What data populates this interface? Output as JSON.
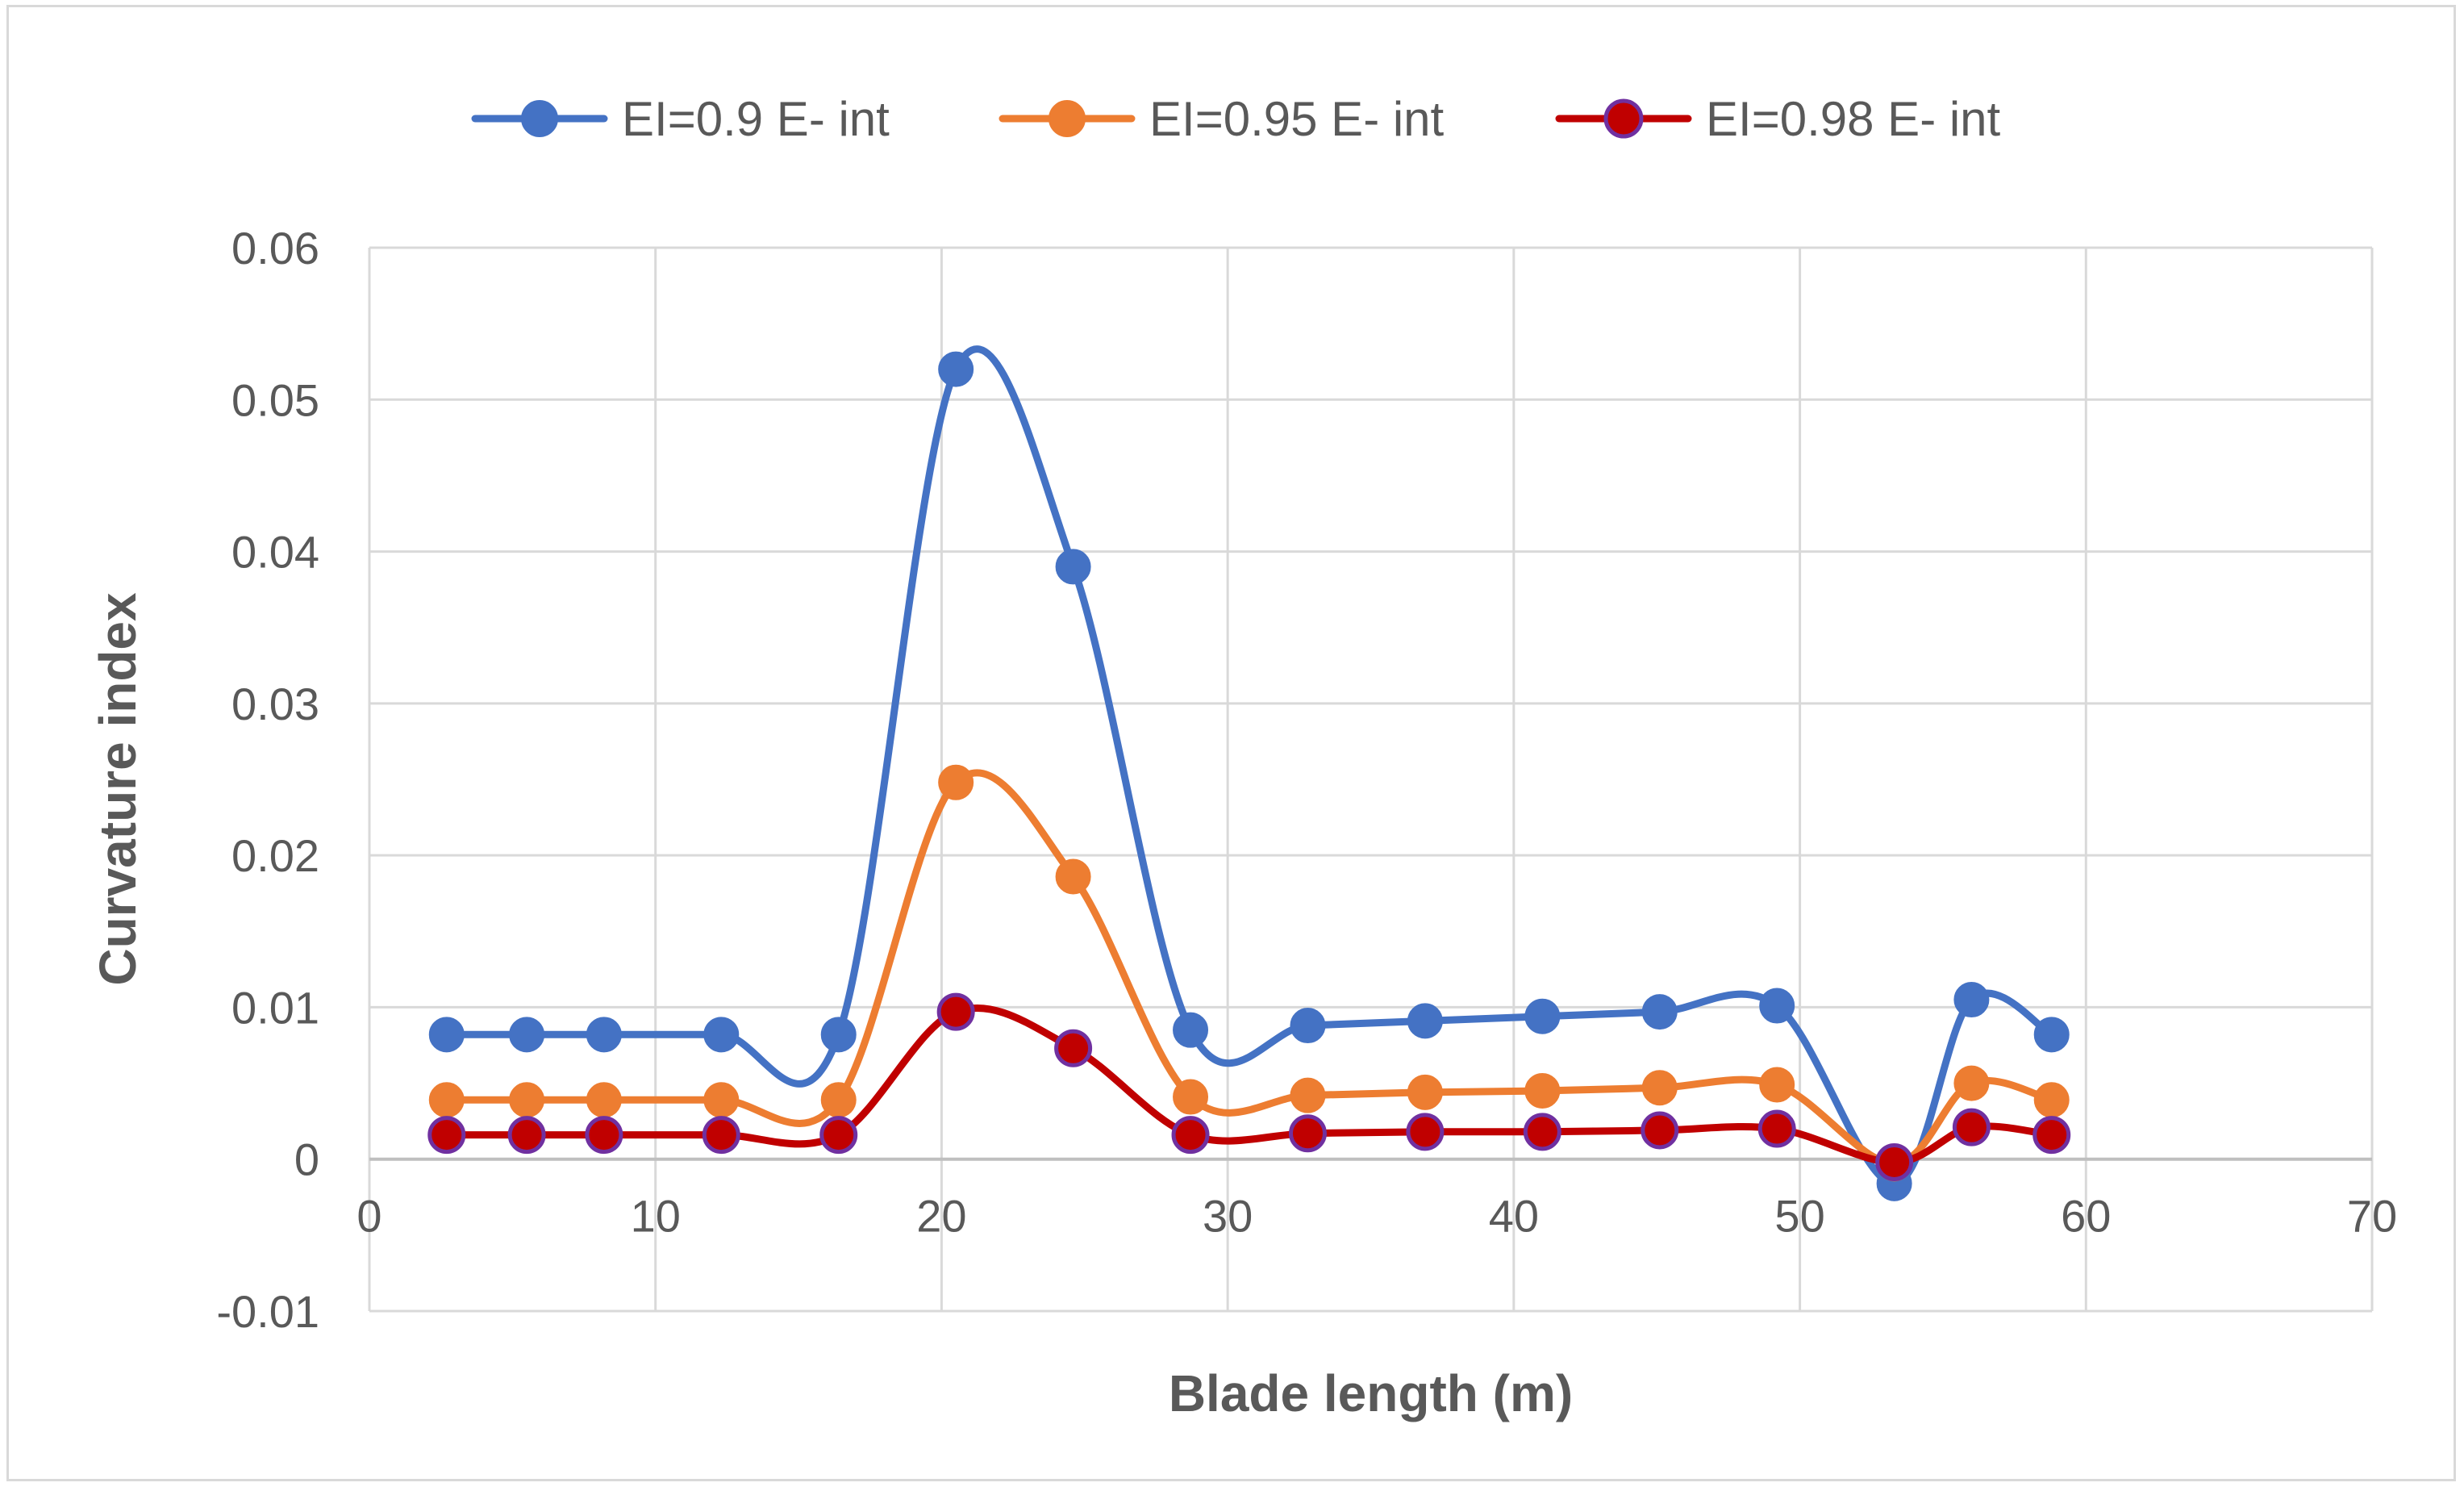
{
  "chart_data": {
    "type": "line",
    "xlabel": "Blade length (m)",
    "ylabel": "Curvature index",
    "xlim": [
      0,
      70
    ],
    "ylim": [
      -0.01,
      0.06
    ],
    "x_ticks": [
      0,
      10,
      20,
      30,
      40,
      50,
      60,
      70
    ],
    "y_ticks": [
      -0.01,
      0,
      0.01,
      0.02,
      0.03,
      0.04,
      0.05,
      0.06
    ],
    "x_tick_labels": [
      "0",
      "10",
      "20",
      "30",
      "40",
      "50",
      "60",
      "70"
    ],
    "y_tick_labels": [
      "-0.01",
      "0",
      "0.01",
      "0.02",
      "0.03",
      "0.04",
      "0.05",
      "0.06"
    ],
    "grid": true,
    "smooth": true,
    "legend_position": "top",
    "x": [
      2.7,
      5.5,
      8.2,
      12.3,
      16.4,
      20.5,
      24.6,
      28.7,
      32.8,
      36.9,
      41.0,
      45.1,
      49.2,
      53.3,
      56.0,
      58.8
    ],
    "series": [
      {
        "name": "EI=0.9 E- int",
        "color": "#4472c4",
        "marker_fill": "#4472c4",
        "values": [
          0.0082,
          0.0082,
          0.0082,
          0.0082,
          0.0082,
          0.052,
          0.039,
          0.0085,
          0.0088,
          0.0091,
          0.0094,
          0.0097,
          0.0101,
          -0.0016,
          0.0105,
          0.0082
        ]
      },
      {
        "name": "EI=0.95 E- int",
        "color": "#ed7d31",
        "marker_fill": "#ed7d31",
        "values": [
          0.0039,
          0.0039,
          0.0039,
          0.0039,
          0.0039,
          0.0248,
          0.0186,
          0.0041,
          0.0042,
          0.0044,
          0.0045,
          0.0047,
          0.0049,
          -0.0003,
          0.005,
          0.0039
        ]
      },
      {
        "name": "EI=0.98 E- int",
        "color": "#c00000",
        "marker_fill": "#c00000",
        "marker_edge": "#7030a0",
        "values": [
          0.0016,
          0.0016,
          0.0016,
          0.0016,
          0.0016,
          0.0097,
          0.0073,
          0.0016,
          0.0017,
          0.0018,
          0.0018,
          0.0019,
          0.002,
          -0.0002,
          0.0021,
          0.0016
        ]
      }
    ]
  }
}
